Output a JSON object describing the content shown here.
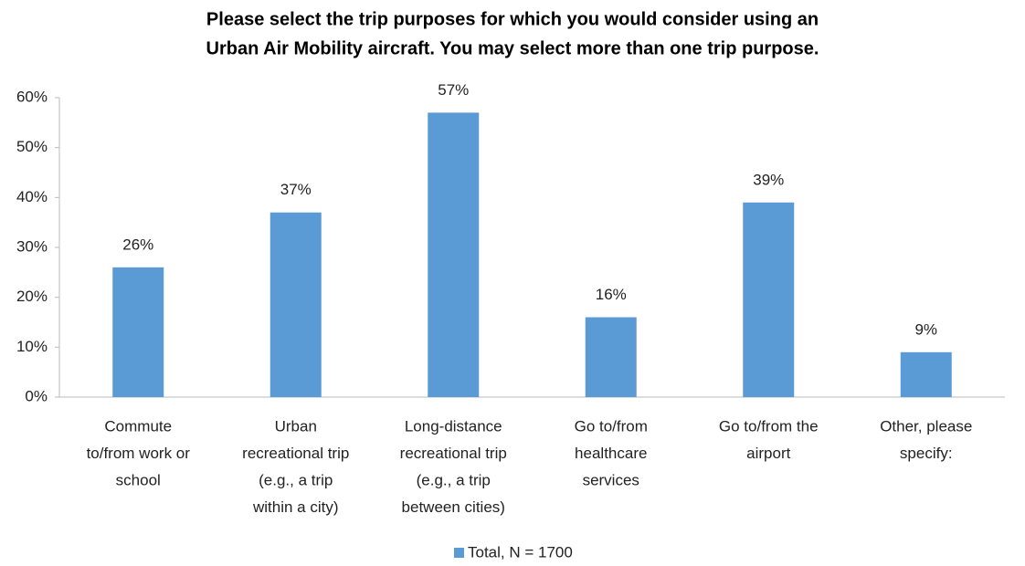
{
  "chart_data": {
    "type": "bar",
    "title": [
      "Please select the trip purposes for which you would consider using an",
      "Urban Air Mobility aircraft. You may select more than one trip purpose."
    ],
    "categories": [
      [
        "Commute",
        "to/from work or",
        "school"
      ],
      [
        "Urban",
        "recreational trip",
        "(e.g., a trip",
        "within a city)"
      ],
      [
        "Long-distance",
        "recreational trip",
        "(e.g., a trip",
        "between cities)"
      ],
      [
        "Go to/from",
        "healthcare",
        "services"
      ],
      [
        "Go to/from the",
        "airport"
      ],
      [
        "Other, please",
        "specify:"
      ]
    ],
    "series": [
      {
        "name": "Total, N = 1700",
        "color": "#5b9bd5",
        "values": [
          26,
          37,
          57,
          16,
          39,
          9
        ],
        "value_labels": [
          "26%",
          "37%",
          "57%",
          "16%",
          "39%",
          "9%"
        ]
      }
    ],
    "ylim": [
      0,
      60
    ],
    "yticks": [
      {
        "value": 0,
        "label": "0%"
      },
      {
        "value": 10,
        "label": "10%"
      },
      {
        "value": 20,
        "label": "20%"
      },
      {
        "value": 30,
        "label": "30%"
      },
      {
        "value": 40,
        "label": "40%"
      },
      {
        "value": 50,
        "label": "50%"
      },
      {
        "value": 60,
        "label": "60%"
      }
    ],
    "legend": "bottom"
  }
}
